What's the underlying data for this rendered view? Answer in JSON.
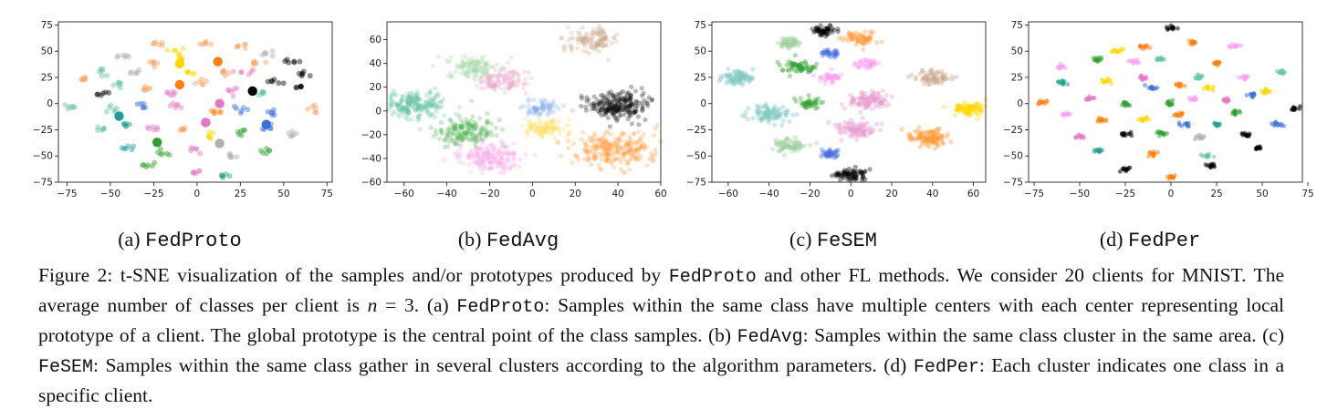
{
  "chart_data": [
    {
      "type": "scatter",
      "subcaption": {
        "prefix": "(a)",
        "method": "FedProto"
      },
      "xticks": [
        -75,
        -50,
        -25,
        0,
        25,
        50,
        75
      ],
      "yticks": [
        -75,
        -50,
        -25,
        0,
        25,
        50,
        75
      ],
      "xlim": [
        -80,
        78
      ],
      "ylim": [
        -75,
        78
      ],
      "point_size": 3,
      "point_alpha": 0.45,
      "colors": [
        "#1f9e8f",
        "#2ca02c",
        "#ff7f0e",
        "#e377c2",
        "#3a6fd8",
        "#b0b0b0",
        "#000000",
        "#ffd700",
        "#f4a261",
        "#66c2a5"
      ],
      "clusters": [
        {
          "cx": -42,
          "cy": 45,
          "spread": 2,
          "n": 6,
          "c": 5
        },
        {
          "cx": -23,
          "cy": 58,
          "spread": 2,
          "n": 6,
          "c": 8
        },
        {
          "cx": -12,
          "cy": 50,
          "spread": 2,
          "n": 6,
          "c": 7
        },
        {
          "cx": 5,
          "cy": 58,
          "spread": 2,
          "n": 6,
          "c": 8
        },
        {
          "cx": 25,
          "cy": 55,
          "spread": 2,
          "n": 6,
          "c": 8
        },
        {
          "cx": 40,
          "cy": 48,
          "spread": 2,
          "n": 6,
          "c": 5
        },
        {
          "cx": -65,
          "cy": 24,
          "spread": 2,
          "n": 6,
          "c": 8
        },
        {
          "cx": -55,
          "cy": 31,
          "spread": 2,
          "n": 6,
          "c": 9
        },
        {
          "cx": -35,
          "cy": 30,
          "spread": 2,
          "n": 6,
          "c": 5
        },
        {
          "cx": -25,
          "cy": 38,
          "spread": 2,
          "n": 6,
          "c": 8
        },
        {
          "cx": -5,
          "cy": 30,
          "spread": 2,
          "n": 6,
          "c": 7
        },
        {
          "cx": 15,
          "cy": 30,
          "spread": 2,
          "n": 6,
          "c": 8
        },
        {
          "cx": 28,
          "cy": 30,
          "spread": 2,
          "n": 6,
          "c": 3
        },
        {
          "cx": 45,
          "cy": 22,
          "spread": 2,
          "n": 6,
          "c": 6
        },
        {
          "cx": 60,
          "cy": 28,
          "spread": 2,
          "n": 6,
          "c": 6
        },
        {
          "cx": -55,
          "cy": 10,
          "spread": 2,
          "n": 6,
          "c": 6
        },
        {
          "cx": -45,
          "cy": 18,
          "spread": 2,
          "n": 6,
          "c": 9
        },
        {
          "cx": -30,
          "cy": 15,
          "spread": 2,
          "n": 6,
          "c": 8
        },
        {
          "cx": -15,
          "cy": 10,
          "spread": 2,
          "n": 6,
          "c": 3
        },
        {
          "cx": 2,
          "cy": 20,
          "spread": 2,
          "n": 6,
          "c": 8
        },
        {
          "cx": 20,
          "cy": 12,
          "spread": 2,
          "n": 6,
          "c": 3
        },
        {
          "cx": 38,
          "cy": 10,
          "spread": 2,
          "n": 6,
          "c": 9
        },
        {
          "cx": 58,
          "cy": 15,
          "spread": 2,
          "n": 6,
          "c": 6
        },
        {
          "cx": -72,
          "cy": -2,
          "spread": 2,
          "n": 6,
          "c": 9
        },
        {
          "cx": -50,
          "cy": -5,
          "spread": 2,
          "n": 6,
          "c": 9
        },
        {
          "cx": -32,
          "cy": -3,
          "spread": 2,
          "n": 6,
          "c": 4
        },
        {
          "cx": -12,
          "cy": -2,
          "spread": 2,
          "n": 6,
          "c": 3
        },
        {
          "cx": 10,
          "cy": -8,
          "spread": 2,
          "n": 6,
          "c": 2
        },
        {
          "cx": 25,
          "cy": -5,
          "spread": 2,
          "n": 6,
          "c": 4
        },
        {
          "cx": 45,
          "cy": -8,
          "spread": 2,
          "n": 6,
          "c": 4
        },
        {
          "cx": 68,
          "cy": -5,
          "spread": 2,
          "n": 6,
          "c": 8
        },
        {
          "cx": -55,
          "cy": -25,
          "spread": 2,
          "n": 6,
          "c": 9
        },
        {
          "cx": -40,
          "cy": -20,
          "spread": 2,
          "n": 6,
          "c": 0
        },
        {
          "cx": -25,
          "cy": -25,
          "spread": 2,
          "n": 6,
          "c": 3
        },
        {
          "cx": -8,
          "cy": -25,
          "spread": 2,
          "n": 6,
          "c": 8
        },
        {
          "cx": 8,
          "cy": -30,
          "spread": 2,
          "n": 6,
          "c": 7
        },
        {
          "cx": 25,
          "cy": -28,
          "spread": 2,
          "n": 6,
          "c": 1
        },
        {
          "cx": 40,
          "cy": -22,
          "spread": 2,
          "n": 6,
          "c": 4
        },
        {
          "cx": 55,
          "cy": -30,
          "spread": 2,
          "n": 6,
          "c": 5
        },
        {
          "cx": -40,
          "cy": -42,
          "spread": 2,
          "n": 6,
          "c": 0
        },
        {
          "cx": -20,
          "cy": -48,
          "spread": 2,
          "n": 6,
          "c": 1
        },
        {
          "cx": -2,
          "cy": -45,
          "spread": 2,
          "n": 6,
          "c": 3
        },
        {
          "cx": 20,
          "cy": -50,
          "spread": 2,
          "n": 6,
          "c": 5
        },
        {
          "cx": 40,
          "cy": -45,
          "spread": 2,
          "n": 6,
          "c": 1
        },
        {
          "cx": -28,
          "cy": -60,
          "spread": 2,
          "n": 6,
          "c": 1
        },
        {
          "cx": 0,
          "cy": -65,
          "spread": 2,
          "n": 6,
          "c": 3
        },
        {
          "cx": 15,
          "cy": -68,
          "spread": 2,
          "n": 6,
          "c": 0
        },
        {
          "cx": 55,
          "cy": 40,
          "spread": 2,
          "n": 6,
          "c": 6
        },
        {
          "cx": 35,
          "cy": 40,
          "spread": 2,
          "n": 6,
          "c": 8
        },
        {
          "cx": -8,
          "cy": 42,
          "spread": 2,
          "n": 6,
          "c": 7
        }
      ],
      "big_points": [
        {
          "x": -10,
          "y": 38,
          "c": 7
        },
        {
          "x": 12,
          "y": 40,
          "c": 2
        },
        {
          "x": -10,
          "y": 18,
          "c": 2
        },
        {
          "x": 32,
          "y": 12,
          "c": 6
        },
        {
          "x": -45,
          "y": -12,
          "c": 0
        },
        {
          "x": 13,
          "y": 0,
          "c": 3
        },
        {
          "x": 5,
          "y": -18,
          "c": 3
        },
        {
          "x": 40,
          "y": -20,
          "c": 4
        },
        {
          "x": -23,
          "y": -37,
          "c": 1
        },
        {
          "x": 13,
          "y": -38,
          "c": 5
        }
      ]
    },
    {
      "type": "scatter",
      "subcaption": {
        "prefix": "(b)",
        "method": "FedAvg"
      },
      "xticks": [
        -60,
        -40,
        -20,
        0,
        20,
        40,
        60
      ],
      "yticks": [
        -60,
        -40,
        -20,
        0,
        20,
        40,
        60
      ],
      "xlim": [
        -68,
        60
      ],
      "ylim": [
        -60,
        75
      ],
      "point_size": 2.6,
      "point_alpha": 0.28,
      "colors": [
        "#66c2a5",
        "#4caf50",
        "#ff9f40",
        "#e9a8c9",
        "#7aa7e8",
        "#a5d6a7",
        "#000000",
        "#ffe066",
        "#f8a5e6",
        "#c9a98b"
      ],
      "clusters": [
        {
          "cx": 28,
          "cy": 60,
          "spread": 6,
          "n": 120,
          "c": 9
        },
        {
          "cx": -28,
          "cy": 37,
          "spread": 6,
          "n": 120,
          "c": 5
        },
        {
          "cx": -15,
          "cy": 25,
          "spread": 6,
          "n": 120,
          "c": 3
        },
        {
          "cx": -55,
          "cy": 5,
          "spread": 7,
          "n": 200,
          "c": 0
        },
        {
          "cx": 4,
          "cy": 2,
          "spread": 4,
          "n": 60,
          "c": 4
        },
        {
          "cx": 40,
          "cy": 5,
          "spread": 7,
          "n": 220,
          "c": 6
        },
        {
          "cx": -30,
          "cy": -17,
          "spread": 7,
          "n": 160,
          "c": 1
        },
        {
          "cx": 6,
          "cy": -15,
          "spread": 5,
          "n": 110,
          "c": 7
        },
        {
          "cx": 38,
          "cy": -33,
          "spread": 10,
          "n": 260,
          "c": 2
        },
        {
          "cx": -20,
          "cy": -38,
          "spread": 8,
          "n": 180,
          "c": 8
        }
      ],
      "big_points": []
    },
    {
      "type": "scatter",
      "subcaption": {
        "prefix": "(c)",
        "method": "FeSEM"
      },
      "xticks": [
        -60,
        -40,
        -20,
        0,
        20,
        40,
        60
      ],
      "yticks": [
        -75,
        -50,
        -25,
        0,
        25,
        50,
        75
      ],
      "xlim": [
        -68,
        66
      ],
      "ylim": [
        -75,
        78
      ],
      "point_size": 2.6,
      "point_alpha": 0.38,
      "colors": [
        "#7ec8c0",
        "#2ca02c",
        "#ff9f40",
        "#e89ad0",
        "#4169e1",
        "#9fcf9f",
        "#000000",
        "#ffd700",
        "#f7a1f0",
        "#c9a98b"
      ],
      "clusters": [
        {
          "cx": -13,
          "cy": 70,
          "spread": 3,
          "n": 50,
          "c": 6
        },
        {
          "cx": 5,
          "cy": 62,
          "spread": 4,
          "n": 70,
          "c": 2
        },
        {
          "cx": -30,
          "cy": 58,
          "spread": 3,
          "n": 50,
          "c": 5
        },
        {
          "cx": -10,
          "cy": 48,
          "spread": 2.5,
          "n": 30,
          "c": 4
        },
        {
          "cx": 8,
          "cy": 38,
          "spread": 3,
          "n": 40,
          "c": 8
        },
        {
          "cx": -25,
          "cy": 35,
          "spread": 4,
          "n": 60,
          "c": 1
        },
        {
          "cx": -55,
          "cy": 25,
          "spread": 4,
          "n": 80,
          "c": 0
        },
        {
          "cx": -10,
          "cy": 25,
          "spread": 3,
          "n": 40,
          "c": 8
        },
        {
          "cx": 40,
          "cy": 25,
          "spread": 4,
          "n": 70,
          "c": 9
        },
        {
          "cx": -20,
          "cy": 0,
          "spread": 3,
          "n": 40,
          "c": 1
        },
        {
          "cx": 8,
          "cy": 3,
          "spread": 5,
          "n": 100,
          "c": 3
        },
        {
          "cx": 57,
          "cy": -5,
          "spread": 4,
          "n": 80,
          "c": 7
        },
        {
          "cx": -40,
          "cy": -10,
          "spread": 5,
          "n": 90,
          "c": 0
        },
        {
          "cx": 3,
          "cy": -25,
          "spread": 5,
          "n": 90,
          "c": 3
        },
        {
          "cx": 38,
          "cy": -33,
          "spread": 5,
          "n": 130,
          "c": 2
        },
        {
          "cx": -30,
          "cy": -40,
          "spread": 4,
          "n": 70,
          "c": 5
        },
        {
          "cx": -10,
          "cy": -48,
          "spread": 2.5,
          "n": 35,
          "c": 4
        },
        {
          "cx": 0,
          "cy": -68,
          "spread": 4,
          "n": 70,
          "c": 6
        }
      ],
      "big_points": []
    },
    {
      "type": "scatter",
      "subcaption": {
        "prefix": "(d)",
        "method": "FedPer"
      },
      "xticks": [
        -75,
        -50,
        -25,
        0,
        25,
        50,
        75
      ],
      "yticks": [
        -75,
        -50,
        -25,
        0,
        25,
        50,
        75
      ],
      "xlim": [
        -78,
        72
      ],
      "ylim": [
        -75,
        78
      ],
      "point_size": 2.4,
      "point_alpha": 0.55,
      "colors": [
        "#1f9e8f",
        "#2ca02c",
        "#ff7f0e",
        "#e377c2",
        "#3a6fd8",
        "#b0b0b0",
        "#000000",
        "#ffd700",
        "#f7a1f0",
        "#66c2a5"
      ],
      "clusters": [
        {
          "cx": 0,
          "cy": 72,
          "spread": 1.5,
          "n": 12,
          "c": 6
        },
        {
          "cx": -15,
          "cy": 55,
          "spread": 1.5,
          "n": 12,
          "c": 2
        },
        {
          "cx": 12,
          "cy": 58,
          "spread": 1.5,
          "n": 12,
          "c": 2
        },
        {
          "cx": 35,
          "cy": 55,
          "spread": 1.5,
          "n": 12,
          "c": 8
        },
        {
          "cx": -40,
          "cy": 42,
          "spread": 1.5,
          "n": 12,
          "c": 1
        },
        {
          "cx": -20,
          "cy": 40,
          "spread": 1.5,
          "n": 12,
          "c": 8
        },
        {
          "cx": -5,
          "cy": 42,
          "spread": 1.5,
          "n": 12,
          "c": 9
        },
        {
          "cx": 25,
          "cy": 38,
          "spread": 1.5,
          "n": 12,
          "c": 2
        },
        {
          "cx": 60,
          "cy": 30,
          "spread": 1.5,
          "n": 12,
          "c": 9
        },
        {
          "cx": -60,
          "cy": 20,
          "spread": 1.5,
          "n": 12,
          "c": 0
        },
        {
          "cx": -35,
          "cy": 22,
          "spread": 1.5,
          "n": 12,
          "c": 7
        },
        {
          "cx": -10,
          "cy": 15,
          "spread": 1.5,
          "n": 12,
          "c": 4
        },
        {
          "cx": 5,
          "cy": 18,
          "spread": 1.5,
          "n": 12,
          "c": 2
        },
        {
          "cx": 20,
          "cy": 15,
          "spread": 1.5,
          "n": 12,
          "c": 7
        },
        {
          "cx": 45,
          "cy": 8,
          "spread": 1.5,
          "n": 12,
          "c": 4
        },
        {
          "cx": -70,
          "cy": 2,
          "spread": 1.5,
          "n": 12,
          "c": 2
        },
        {
          "cx": -45,
          "cy": 5,
          "spread": 1.5,
          "n": 12,
          "c": 3
        },
        {
          "cx": -25,
          "cy": 0,
          "spread": 1.5,
          "n": 12,
          "c": 1
        },
        {
          "cx": 0,
          "cy": 0,
          "spread": 1.5,
          "n": 12,
          "c": 1
        },
        {
          "cx": 12,
          "cy": 5,
          "spread": 1.5,
          "n": 12,
          "c": 8
        },
        {
          "cx": 30,
          "cy": 3,
          "spread": 1.5,
          "n": 12,
          "c": 3
        },
        {
          "cx": 52,
          "cy": 12,
          "spread": 1.5,
          "n": 12,
          "c": 7
        },
        {
          "cx": 68,
          "cy": -5,
          "spread": 1.5,
          "n": 12,
          "c": 6
        },
        {
          "cx": -58,
          "cy": -10,
          "spread": 1.5,
          "n": 12,
          "c": 8
        },
        {
          "cx": -38,
          "cy": -15,
          "spread": 1.5,
          "n": 12,
          "c": 2
        },
        {
          "cx": -15,
          "cy": -15,
          "spread": 1.5,
          "n": 12,
          "c": 7
        },
        {
          "cx": 5,
          "cy": -10,
          "spread": 1.5,
          "n": 12,
          "c": 2
        },
        {
          "cx": 25,
          "cy": -20,
          "spread": 1.5,
          "n": 12,
          "c": 0
        },
        {
          "cx": 58,
          "cy": -20,
          "spread": 1.5,
          "n": 12,
          "c": 4
        },
        {
          "cx": -50,
          "cy": -32,
          "spread": 1.5,
          "n": 12,
          "c": 3
        },
        {
          "cx": -25,
          "cy": -30,
          "spread": 1.5,
          "n": 12,
          "c": 6
        },
        {
          "cx": -5,
          "cy": -28,
          "spread": 1.5,
          "n": 12,
          "c": 1
        },
        {
          "cx": 15,
          "cy": -32,
          "spread": 1.5,
          "n": 12,
          "c": 5
        },
        {
          "cx": 40,
          "cy": -30,
          "spread": 1.5,
          "n": 12,
          "c": 6
        },
        {
          "cx": -40,
          "cy": -45,
          "spread": 1.5,
          "n": 12,
          "c": 0
        },
        {
          "cx": -10,
          "cy": -48,
          "spread": 1.5,
          "n": 12,
          "c": 2
        },
        {
          "cx": 20,
          "cy": -50,
          "spread": 1.5,
          "n": 12,
          "c": 9
        },
        {
          "cx": 48,
          "cy": -42,
          "spread": 1.5,
          "n": 12,
          "c": 6
        },
        {
          "cx": -25,
          "cy": -62,
          "spread": 1.5,
          "n": 12,
          "c": 6
        },
        {
          "cx": 0,
          "cy": -70,
          "spread": 1.5,
          "n": 12,
          "c": 2
        },
        {
          "cx": 22,
          "cy": -60,
          "spread": 1.5,
          "n": 12,
          "c": 6
        },
        {
          "cx": -60,
          "cy": 35,
          "spread": 1.5,
          "n": 12,
          "c": 8
        },
        {
          "cx": 40,
          "cy": 25,
          "spread": 1.5,
          "n": 12,
          "c": 8
        },
        {
          "cx": -30,
          "cy": 50,
          "spread": 1.5,
          "n": 12,
          "c": 7
        },
        {
          "cx": 15,
          "cy": 25,
          "spread": 1.5,
          "n": 12,
          "c": 9
        },
        {
          "cx": 35,
          "cy": -8,
          "spread": 1.5,
          "n": 12,
          "c": 1
        },
        {
          "cx": -15,
          "cy": 25,
          "spread": 1.5,
          "n": 12,
          "c": 3
        },
        {
          "cx": 8,
          "cy": -20,
          "spread": 1.5,
          "n": 12,
          "c": 4
        }
      ],
      "big_points": []
    }
  ],
  "caption": {
    "figure_label": "Figure 2:",
    "s1": " t-SNE visualization of the samples and/or prototypes produced by ",
    "m1": "FedProto",
    "s2": " and other FL methods. We consider 20 clients for MNIST. The average number of classes per client is ",
    "var_n": "n",
    "s3": " = 3. (a) ",
    "m2": "FedProto",
    "s4": ": Samples within the same class have multiple centers with each center representing local prototype of a client. The global prototype is the central point of the class samples. (b) ",
    "m3": "FedAvg",
    "s5": ": Samples within the same class cluster in the same area. (c) ",
    "m4": "FeSEM",
    "s6": ": Samples within the same class gather in several clusters according to the algorithm parameters. (d) ",
    "m5": "FedPer",
    "s7": ": Each cluster indicates one class in a specific client."
  }
}
